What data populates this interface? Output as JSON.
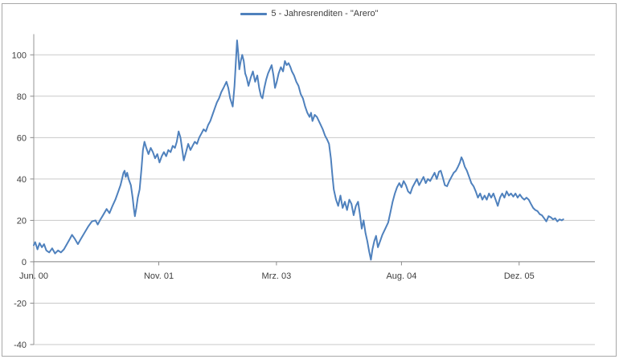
{
  "legend": {
    "label": "5 - Jahresrenditen - \"Arero\""
  },
  "colors": {
    "line": "#4F81BD",
    "grid": "#C9C9C9",
    "axis": "#969696",
    "zero_axis": "#808080",
    "tick": "#8B8B8B",
    "text": "#3E3E3E",
    "border": "#A8A8A8",
    "background": "#FFFFFF"
  },
  "chart_data": {
    "type": "line",
    "title": "",
    "xlabel": "",
    "ylabel": "",
    "x_unit": "months since Jun 2000",
    "y_unit": "return (%)",
    "grid": "horizontal",
    "legend_position": "top-center",
    "xlim": [
      0,
      76.3
    ],
    "ylim": [
      -40,
      110
    ],
    "x_ticks": [
      {
        "pos": 0,
        "label": "Jun. 00"
      },
      {
        "pos": 17,
        "label": "Nov. 01"
      },
      {
        "pos": 33,
        "label": "Mrz. 03"
      },
      {
        "pos": 50,
        "label": "Aug. 04"
      },
      {
        "pos": 66,
        "label": "Dez. 05"
      }
    ],
    "y_ticks": [
      100,
      80,
      60,
      40,
      20,
      0,
      -20,
      -40
    ],
    "series": [
      {
        "name": "5 - Jahresrenditen - \"Arero\"",
        "points": [
          [
            0,
            8
          ],
          [
            0.2,
            9.5
          ],
          [
            0.5,
            6
          ],
          [
            0.8,
            9
          ],
          [
            1.1,
            7
          ],
          [
            1.4,
            8.5
          ],
          [
            1.7,
            5.5
          ],
          [
            2.1,
            4.5
          ],
          [
            2.5,
            6.5
          ],
          [
            2.9,
            4
          ],
          [
            3.3,
            5.5
          ],
          [
            3.7,
            4.5
          ],
          [
            4.1,
            6
          ],
          [
            4.5,
            8.5
          ],
          [
            4.9,
            11
          ],
          [
            5.2,
            13
          ],
          [
            5.6,
            11
          ],
          [
            6.0,
            8.5
          ],
          [
            6.4,
            11
          ],
          [
            6.9,
            14
          ],
          [
            7.4,
            17
          ],
          [
            7.9,
            19.5
          ],
          [
            8.4,
            20
          ],
          [
            8.7,
            18
          ],
          [
            9.0,
            20
          ],
          [
            9.5,
            23
          ],
          [
            9.9,
            25.5
          ],
          [
            10.3,
            23.5
          ],
          [
            10.7,
            27
          ],
          [
            11.1,
            30
          ],
          [
            11.5,
            34
          ],
          [
            11.8,
            37
          ],
          [
            12.0,
            40
          ],
          [
            12.2,
            43
          ],
          [
            12.35,
            44
          ],
          [
            12.5,
            41
          ],
          [
            12.7,
            43
          ],
          [
            12.9,
            40
          ],
          [
            13.2,
            37
          ],
          [
            13.45,
            31
          ],
          [
            13.6,
            26
          ],
          [
            13.75,
            22
          ],
          [
            13.95,
            26
          ],
          [
            14.15,
            31
          ],
          [
            14.4,
            35
          ],
          [
            14.65,
            45
          ],
          [
            14.85,
            54
          ],
          [
            15.05,
            58
          ],
          [
            15.3,
            55
          ],
          [
            15.6,
            52
          ],
          [
            15.9,
            55
          ],
          [
            16.2,
            53
          ],
          [
            16.5,
            50
          ],
          [
            16.8,
            52
          ],
          [
            17.1,
            48
          ],
          [
            17.4,
            51
          ],
          [
            17.7,
            53
          ],
          [
            18.0,
            51
          ],
          [
            18.3,
            54
          ],
          [
            18.6,
            53
          ],
          [
            18.9,
            56
          ],
          [
            19.2,
            55
          ],
          [
            19.45,
            58
          ],
          [
            19.7,
            63
          ],
          [
            19.95,
            60
          ],
          [
            20.4,
            49
          ],
          [
            20.7,
            53
          ],
          [
            21.0,
            57
          ],
          [
            21.3,
            54
          ],
          [
            21.6,
            56
          ],
          [
            21.9,
            58
          ],
          [
            22.2,
            57
          ],
          [
            22.5,
            60
          ],
          [
            22.8,
            62
          ],
          [
            23.1,
            64
          ],
          [
            23.4,
            63
          ],
          [
            23.7,
            66
          ],
          [
            24.0,
            68
          ],
          [
            24.3,
            71
          ],
          [
            24.6,
            74
          ],
          [
            24.9,
            77
          ],
          [
            25.2,
            79
          ],
          [
            25.5,
            82
          ],
          [
            25.8,
            84
          ],
          [
            26.2,
            87
          ],
          [
            26.45,
            84
          ],
          [
            26.7,
            79
          ],
          [
            27.05,
            75
          ],
          [
            27.3,
            85
          ],
          [
            27.5,
            98
          ],
          [
            27.65,
            107
          ],
          [
            27.8,
            101
          ],
          [
            27.95,
            93
          ],
          [
            28.15,
            97
          ],
          [
            28.35,
            100
          ],
          [
            28.55,
            97
          ],
          [
            28.75,
            91
          ],
          [
            28.95,
            89
          ],
          [
            29.2,
            85
          ],
          [
            29.5,
            89
          ],
          [
            29.8,
            92
          ],
          [
            30.1,
            87
          ],
          [
            30.4,
            90
          ],
          [
            30.65,
            84
          ],
          [
            30.9,
            80
          ],
          [
            31.1,
            79
          ],
          [
            31.35,
            84
          ],
          [
            31.6,
            88
          ],
          [
            31.85,
            91
          ],
          [
            32.1,
            93
          ],
          [
            32.35,
            95
          ],
          [
            32.6,
            90
          ],
          [
            32.8,
            84
          ],
          [
            33.05,
            87
          ],
          [
            33.3,
            91
          ],
          [
            33.6,
            94
          ],
          [
            33.9,
            92
          ],
          [
            34.15,
            97
          ],
          [
            34.4,
            95
          ],
          [
            34.65,
            96
          ],
          [
            34.9,
            94
          ],
          [
            35.1,
            92
          ],
          [
            35.4,
            90
          ],
          [
            35.7,
            87
          ],
          [
            36.0,
            85
          ],
          [
            36.3,
            81
          ],
          [
            36.6,
            79
          ],
          [
            36.9,
            75
          ],
          [
            37.2,
            72
          ],
          [
            37.5,
            70
          ],
          [
            37.7,
            72
          ],
          [
            37.9,
            68
          ],
          [
            38.2,
            71
          ],
          [
            38.5,
            70
          ],
          [
            38.9,
            67
          ],
          [
            39.3,
            64
          ],
          [
            39.6,
            61
          ],
          [
            39.9,
            59
          ],
          [
            40.15,
            57
          ],
          [
            40.4,
            50
          ],
          [
            40.6,
            42
          ],
          [
            40.8,
            35
          ],
          [
            41.1,
            30
          ],
          [
            41.4,
            27
          ],
          [
            41.7,
            32
          ],
          [
            42.0,
            26
          ],
          [
            42.3,
            29
          ],
          [
            42.6,
            25
          ],
          [
            42.9,
            30
          ],
          [
            43.2,
            28
          ],
          [
            43.5,
            22.5
          ],
          [
            43.8,
            27
          ],
          [
            44.1,
            29
          ],
          [
            44.35,
            23
          ],
          [
            44.6,
            16
          ],
          [
            44.85,
            20
          ],
          [
            45.1,
            14
          ],
          [
            45.35,
            10
          ],
          [
            45.6,
            5
          ],
          [
            45.85,
            1
          ],
          [
            46.05,
            6
          ],
          [
            46.3,
            10
          ],
          [
            46.55,
            12.5
          ],
          [
            46.8,
            7
          ],
          [
            47.1,
            10
          ],
          [
            47.4,
            13
          ],
          [
            47.8,
            16
          ],
          [
            48.2,
            19
          ],
          [
            48.5,
            24
          ],
          [
            48.8,
            29
          ],
          [
            49.1,
            33
          ],
          [
            49.4,
            36
          ],
          [
            49.7,
            38
          ],
          [
            50.0,
            36
          ],
          [
            50.3,
            39
          ],
          [
            50.6,
            37
          ],
          [
            50.9,
            34
          ],
          [
            51.2,
            33
          ],
          [
            51.5,
            36
          ],
          [
            51.8,
            38
          ],
          [
            52.1,
            40
          ],
          [
            52.4,
            37
          ],
          [
            52.7,
            39
          ],
          [
            53.0,
            41
          ],
          [
            53.3,
            38
          ],
          [
            53.6,
            40
          ],
          [
            53.9,
            39
          ],
          [
            54.2,
            41
          ],
          [
            54.5,
            43
          ],
          [
            54.8,
            40
          ],
          [
            55.1,
            43.5
          ],
          [
            55.35,
            44
          ],
          [
            55.6,
            41
          ],
          [
            55.9,
            37
          ],
          [
            56.2,
            36.5
          ],
          [
            56.5,
            39
          ],
          [
            56.8,
            41
          ],
          [
            57.1,
            43
          ],
          [
            57.4,
            44
          ],
          [
            57.7,
            46
          ],
          [
            57.95,
            48
          ],
          [
            58.15,
            50.5
          ],
          [
            58.35,
            49
          ],
          [
            58.6,
            46
          ],
          [
            58.9,
            44
          ],
          [
            59.2,
            41
          ],
          [
            59.5,
            38
          ],
          [
            59.8,
            36.5
          ],
          [
            60.1,
            34
          ],
          [
            60.4,
            31
          ],
          [
            60.7,
            33
          ],
          [
            61.0,
            30
          ],
          [
            61.3,
            32
          ],
          [
            61.6,
            30
          ],
          [
            61.9,
            33
          ],
          [
            62.2,
            31
          ],
          [
            62.5,
            33
          ],
          [
            62.8,
            30
          ],
          [
            63.1,
            27
          ],
          [
            63.4,
            31
          ],
          [
            63.7,
            33
          ],
          [
            64.0,
            31
          ],
          [
            64.3,
            34
          ],
          [
            64.6,
            32
          ],
          [
            64.9,
            33
          ],
          [
            65.2,
            31.5
          ],
          [
            65.5,
            33
          ],
          [
            65.8,
            31
          ],
          [
            66.1,
            32.5
          ],
          [
            66.4,
            31
          ],
          [
            66.7,
            30
          ],
          [
            67.0,
            31
          ],
          [
            67.3,
            30
          ],
          [
            67.6,
            28
          ],
          [
            67.9,
            26
          ],
          [
            68.2,
            25
          ],
          [
            68.5,
            24.5
          ],
          [
            68.8,
            23
          ],
          [
            69.1,
            22.5
          ],
          [
            69.4,
            21
          ],
          [
            69.7,
            19.5
          ],
          [
            70.0,
            22
          ],
          [
            70.3,
            21.5
          ],
          [
            70.6,
            20.5
          ],
          [
            70.9,
            21
          ],
          [
            71.2,
            19.5
          ],
          [
            71.5,
            20.5
          ],
          [
            71.8,
            20
          ],
          [
            72.0,
            20.5
          ]
        ]
      }
    ]
  }
}
